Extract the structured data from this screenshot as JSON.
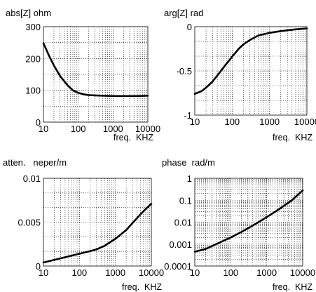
{
  "figure_colors": {
    "background": "#ffffff",
    "ink": "#000000",
    "grid": "#000000"
  },
  "chart_data": [
    {
      "type": "line",
      "title": "abs[Z] ohm",
      "xlabel": "freq.  KHZ",
      "xscale": "log",
      "yscale": "linear",
      "xlim": [
        10,
        10000
      ],
      "ylim": [
        0,
        300
      ],
      "xticks": [
        10,
        100,
        1000,
        10000
      ],
      "xtick_labels": [
        "10",
        "100",
        "1000",
        "10000"
      ],
      "yticks": [
        0,
        100,
        200,
        300
      ],
      "ytick_labels": [
        "0",
        "100",
        "200",
        "300"
      ],
      "grid": true,
      "series": [
        {
          "x": [
            10,
            15,
            20,
            30,
            50,
            70,
            100,
            150,
            200,
            300,
            500,
            1000,
            2000,
            5000,
            10000
          ],
          "y": [
            248,
            205,
            178,
            145,
            115,
            100,
            92,
            87,
            85,
            84,
            83,
            82,
            82,
            82,
            83
          ]
        }
      ]
    },
    {
      "type": "line",
      "title": "arg[Z] rad",
      "xlabel": "freq.  KHZ",
      "xscale": "log",
      "yscale": "linear",
      "xlim": [
        10,
        10000
      ],
      "ylim": [
        -1,
        0
      ],
      "xticks": [
        10,
        100,
        1000,
        10000
      ],
      "xtick_labels": [
        "10",
        "100",
        "1000",
        "10000"
      ],
      "yticks": [
        0,
        -0.5,
        -1
      ],
      "ytick_labels": [
        "0",
        "-0.5",
        "-1"
      ],
      "grid": true,
      "series": [
        {
          "x": [
            10,
            15,
            20,
            30,
            50,
            70,
            100,
            150,
            200,
            300,
            500,
            1000,
            2000,
            5000,
            10000
          ],
          "y": [
            -0.76,
            -0.73,
            -0.69,
            -0.62,
            -0.5,
            -0.42,
            -0.34,
            -0.25,
            -0.2,
            -0.15,
            -0.1,
            -0.07,
            -0.05,
            -0.03,
            -0.02
          ]
        }
      ]
    },
    {
      "type": "line",
      "title": "atten.   neper/m",
      "xlabel": "freq.  KHZ",
      "xscale": "log",
      "yscale": "linear",
      "xlim": [
        10,
        10000
      ],
      "ylim": [
        0,
        0.01
      ],
      "xticks": [
        10,
        100,
        1000,
        10000
      ],
      "xtick_labels": [
        "10",
        "100",
        "1000",
        "10000"
      ],
      "yticks": [
        0,
        0.005,
        0.01
      ],
      "ytick_labels": [
        "0",
        "0.005",
        "0.01"
      ],
      "grid": true,
      "series": [
        {
          "x": [
            10,
            20,
            50,
            100,
            200,
            300,
            500,
            700,
            1000,
            2000,
            3000,
            5000,
            7000,
            10000
          ],
          "y": [
            0.0004,
            0.0007,
            0.0011,
            0.0014,
            0.0017,
            0.0019,
            0.0023,
            0.0027,
            0.0031,
            0.0041,
            0.0049,
            0.0059,
            0.0065,
            0.0071
          ]
        }
      ]
    },
    {
      "type": "line",
      "title": "phase  rad/m",
      "xlabel": "freq.  KHZ",
      "xscale": "log",
      "yscale": "log",
      "xlim": [
        10,
        10000
      ],
      "ylim": [
        0.0001,
        1
      ],
      "xticks": [
        10,
        100,
        1000,
        10000
      ],
      "xtick_labels": [
        "10",
        "100",
        "1000",
        "10000"
      ],
      "yticks": [
        1,
        0.1,
        0.01,
        0.001,
        0.0001
      ],
      "ytick_labels": [
        "1",
        "0.1",
        "0.01",
        "0.001",
        "0.0001"
      ],
      "grid": true,
      "series": [
        {
          "x": [
            10,
            20,
            50,
            100,
            200,
            500,
            1000,
            2000,
            5000,
            10000
          ],
          "y": [
            0.00045,
            0.0006,
            0.0012,
            0.002,
            0.0036,
            0.0085,
            0.017,
            0.035,
            0.1,
            0.28
          ]
        }
      ]
    }
  ]
}
